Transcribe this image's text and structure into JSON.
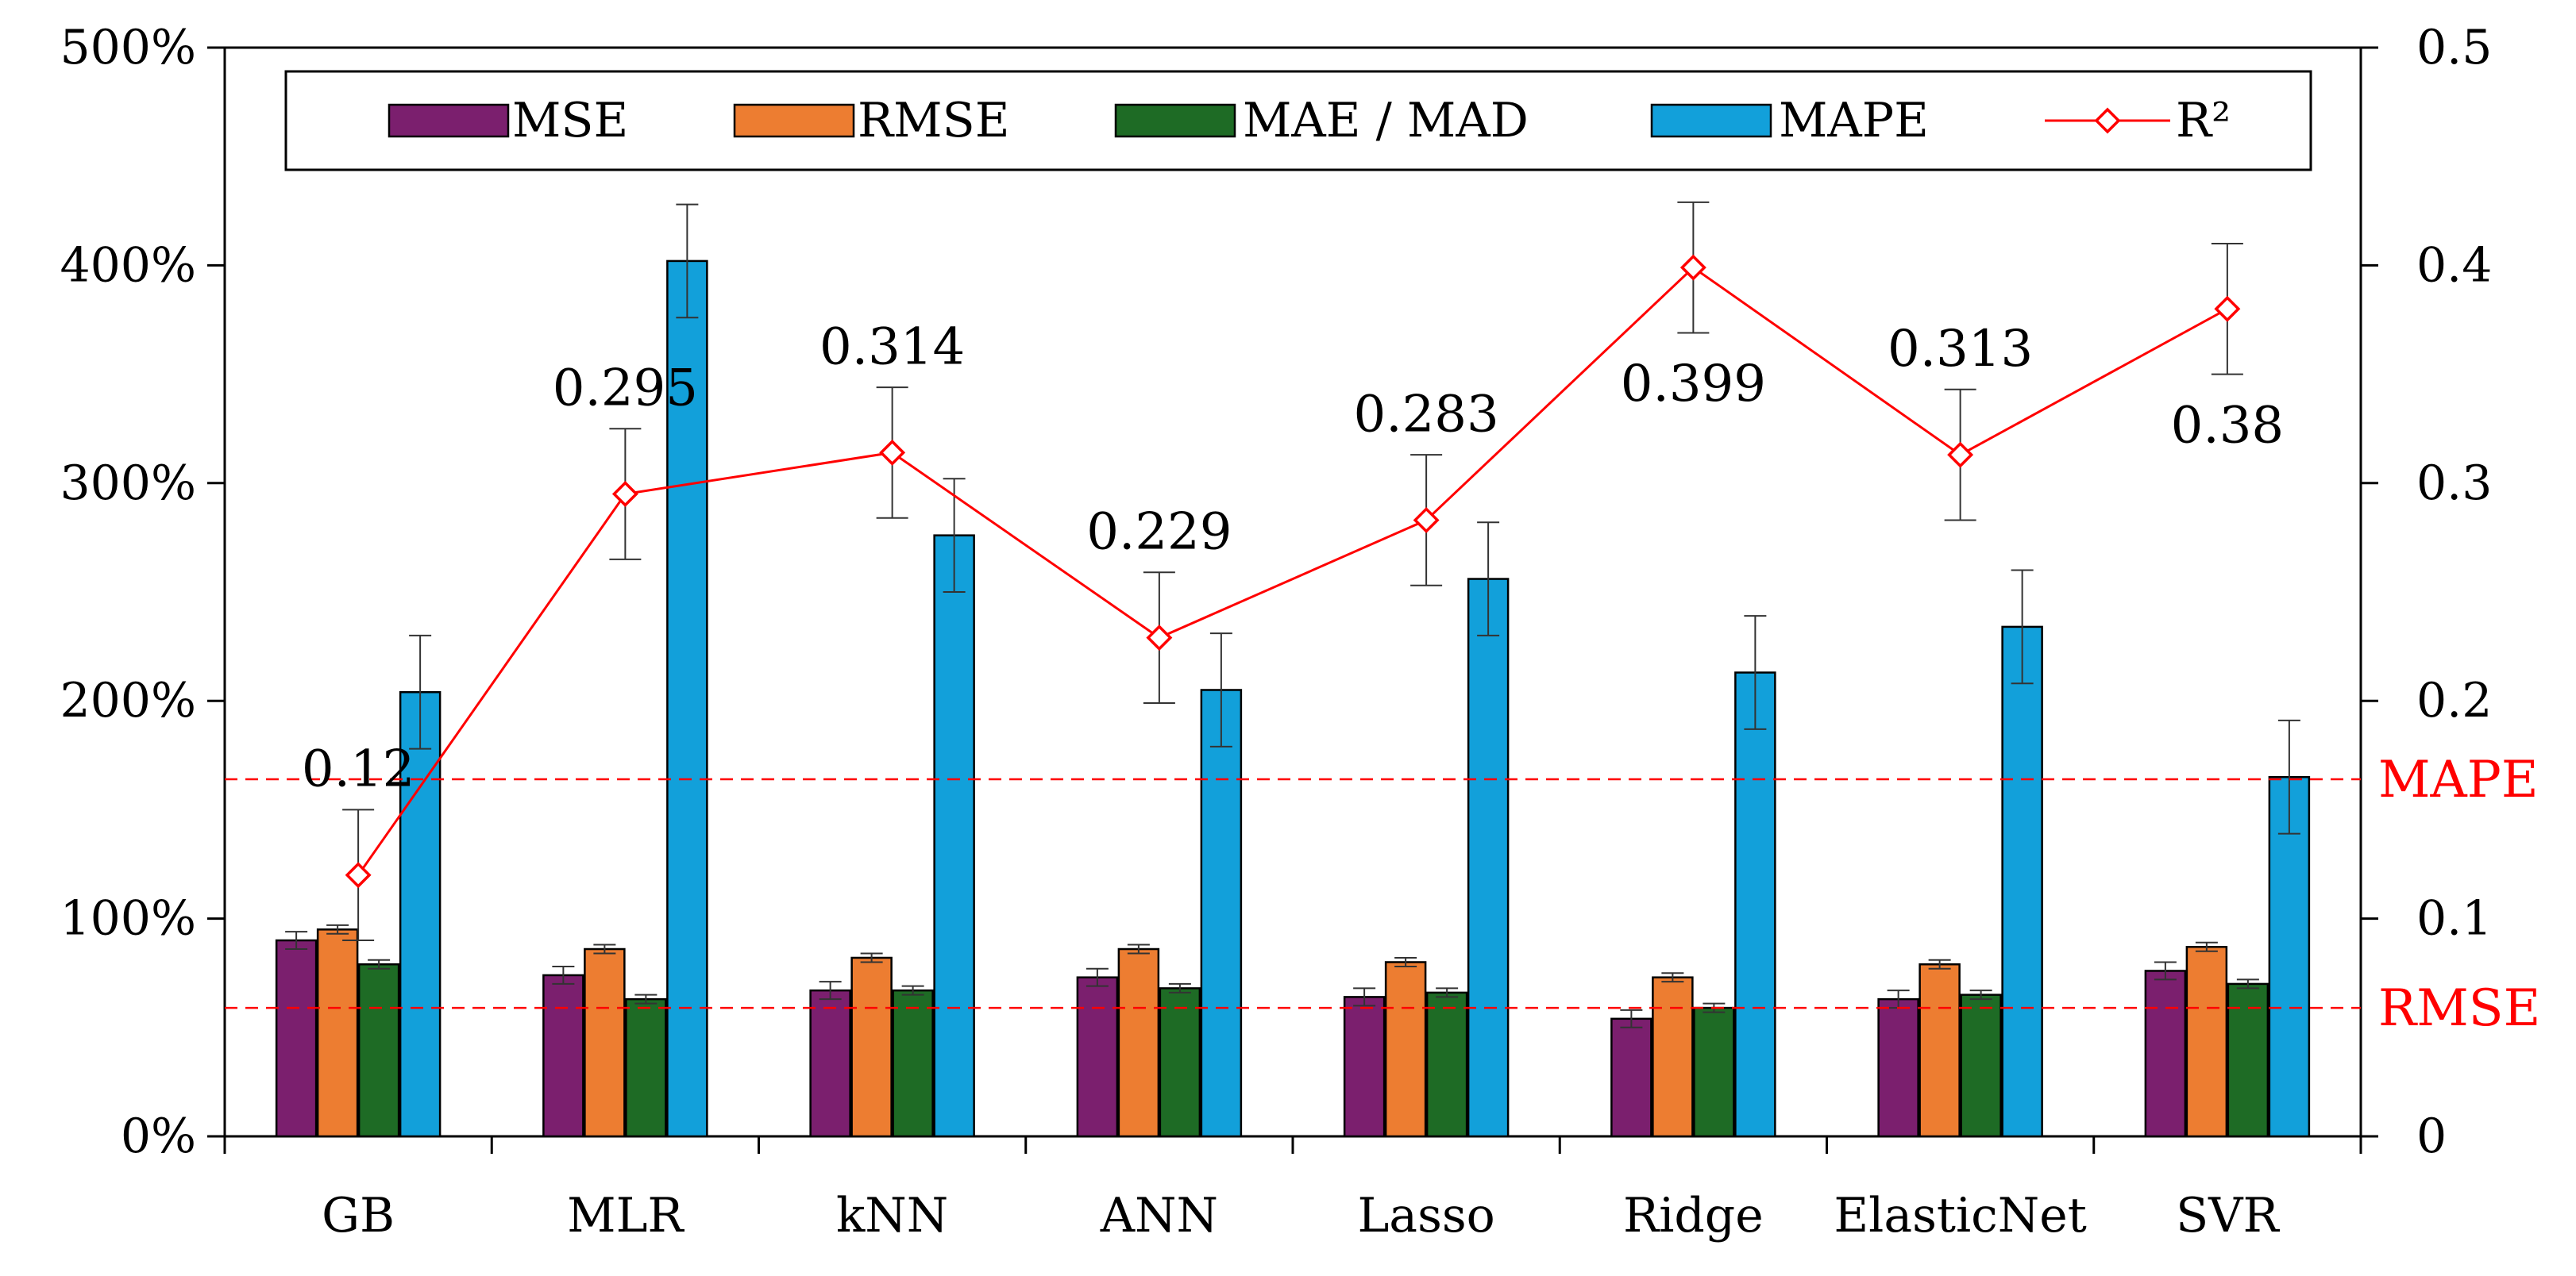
{
  "chart_data": {
    "type": "bar",
    "categories": [
      "GB",
      "MLR",
      "kNN",
      "ANN",
      "Lasso",
      "Ridge",
      "ElasticNet",
      "SVR"
    ],
    "y_left": {
      "lim": [
        0,
        500
      ],
      "ticks": [
        0,
        100,
        200,
        300,
        400,
        500
      ],
      "tick_labels": [
        "0%",
        "100%",
        "200%",
        "300%",
        "400%",
        "500%"
      ]
    },
    "y_right": {
      "lim": [
        0,
        0.5
      ],
      "ticks": [
        0,
        0.1,
        0.2,
        0.3,
        0.4,
        0.5
      ],
      "tick_labels": [
        "0",
        "0.1",
        "0.2",
        "0.3",
        "0.4",
        "0.5"
      ]
    },
    "series": [
      {
        "name": "MSE",
        "type": "bar",
        "axis": "left",
        "color": "#7B1F6E",
        "values": [
          90,
          74,
          67,
          73,
          64,
          54,
          63,
          76
        ],
        "errors": [
          4,
          4,
          4,
          4,
          4,
          4,
          4,
          4
        ]
      },
      {
        "name": "RMSE",
        "type": "bar",
        "axis": "left",
        "color": "#ED7D31",
        "values": [
          95,
          86,
          82,
          86,
          80,
          73,
          79,
          87
        ],
        "errors": [
          2,
          2,
          2,
          2,
          2,
          2,
          2,
          2
        ]
      },
      {
        "name": "MAE / MAD",
        "type": "bar",
        "axis": "left",
        "color": "#1E6B25",
        "values": [
          79,
          63,
          67,
          68,
          66,
          59,
          65,
          70
        ],
        "errors": [
          2,
          2,
          2,
          2,
          2,
          2,
          2,
          2
        ]
      },
      {
        "name": "MAPE",
        "type": "bar",
        "axis": "left",
        "color": "#12A0DA",
        "values": [
          204,
          402,
          276,
          205,
          256,
          213,
          234,
          165
        ],
        "errors": [
          26,
          26,
          26,
          26,
          26,
          26,
          26,
          26
        ]
      },
      {
        "name": "R²",
        "type": "line",
        "axis": "right",
        "color": "#FF0000",
        "values": [
          0.12,
          0.295,
          0.314,
          0.229,
          0.283,
          0.399,
          0.313,
          0.38
        ],
        "errors": [
          0.03,
          0.03,
          0.03,
          0.03,
          0.03,
          0.03,
          0.03,
          0.03
        ],
        "labels": [
          "0.12",
          "0.295",
          "0.314",
          "0.229",
          "0.283",
          "0.399",
          "0.313",
          "0.38"
        ],
        "label_side": [
          "above",
          "above",
          "above",
          "above",
          "above",
          "below",
          "above",
          "below"
        ]
      }
    ],
    "reference_lines": [
      {
        "label": "MAPE",
        "value": 164,
        "color": "#FF0000"
      },
      {
        "label": "RMSE",
        "value": 59,
        "color": "#FF0000"
      }
    ],
    "legend": {
      "placement": "top-center",
      "items": [
        "MSE",
        "RMSE",
        "MAE / MAD",
        "MAPE",
        "R²"
      ]
    },
    "grid": false
  }
}
